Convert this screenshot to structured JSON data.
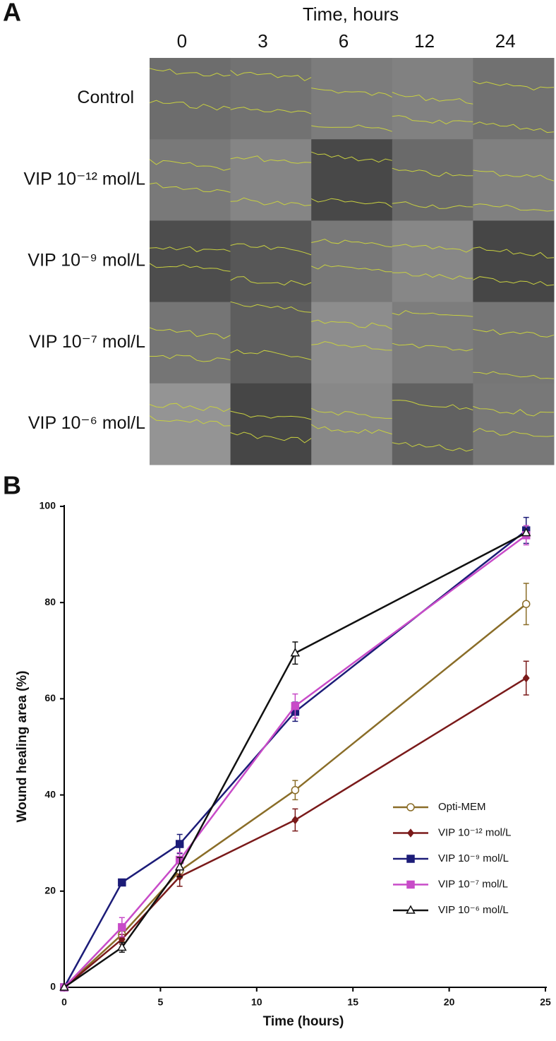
{
  "panel_a": {
    "label": "A",
    "title": "Time, hours",
    "columns": [
      "0",
      "3",
      "6",
      "12",
      "24"
    ],
    "rows": [
      "Control",
      "VIP 10⁻¹² mol/L",
      "VIP 10⁻⁹ mol/L",
      "VIP 10⁻⁷ mol/L",
      "VIP 10⁻⁶ mol/L"
    ]
  },
  "chart_data": {
    "type": "line",
    "panel_label": "B",
    "x_label": "Time (hours)",
    "y_label": "Wound healing area (%)",
    "x": [
      0,
      3,
      6,
      12,
      24
    ],
    "xlim": [
      0,
      25
    ],
    "xticks": [
      0,
      5,
      10,
      15,
      20,
      25
    ],
    "ylim": [
      0,
      100
    ],
    "yticks": [
      0,
      20,
      40,
      60,
      80,
      100
    ],
    "grid": false,
    "legend": "lower right",
    "series": [
      {
        "name": "Opti-MEM",
        "color": "#8a6d28",
        "marker": "open-circle",
        "values": [
          0,
          11,
          24.2,
          41,
          79.7
        ],
        "errors": [
          0,
          1.5,
          1.5,
          2,
          4.3
        ]
      },
      {
        "name": "VIP 10⁻¹² mol/L",
        "color": "#7a1a1a",
        "marker": "diamond",
        "values": [
          0,
          10,
          23,
          34.8,
          64.3
        ],
        "errors": [
          0,
          1,
          2,
          2.3,
          3.5
        ]
      },
      {
        "name": "VIP 10⁻⁹ mol/L",
        "color": "#1c1c78",
        "marker": "square",
        "values": [
          0,
          21.8,
          29.8,
          57.3,
          95
        ],
        "errors": [
          0,
          0.5,
          2,
          2,
          2.7
        ]
      },
      {
        "name": "VIP 10⁻⁷ mol/L",
        "color": "#c84bc8",
        "marker": "square",
        "values": [
          0,
          12.5,
          26.5,
          58.5,
          94
        ],
        "errors": [
          0,
          2,
          1.5,
          2.5,
          2
        ]
      },
      {
        "name": "VIP 10⁻⁶ mol/L",
        "color": "#111111",
        "marker": "open-triangle",
        "values": [
          0,
          8.3,
          25,
          69.5,
          94.5
        ],
        "errors": [
          0,
          1,
          2,
          2.3,
          0
        ]
      }
    ]
  }
}
